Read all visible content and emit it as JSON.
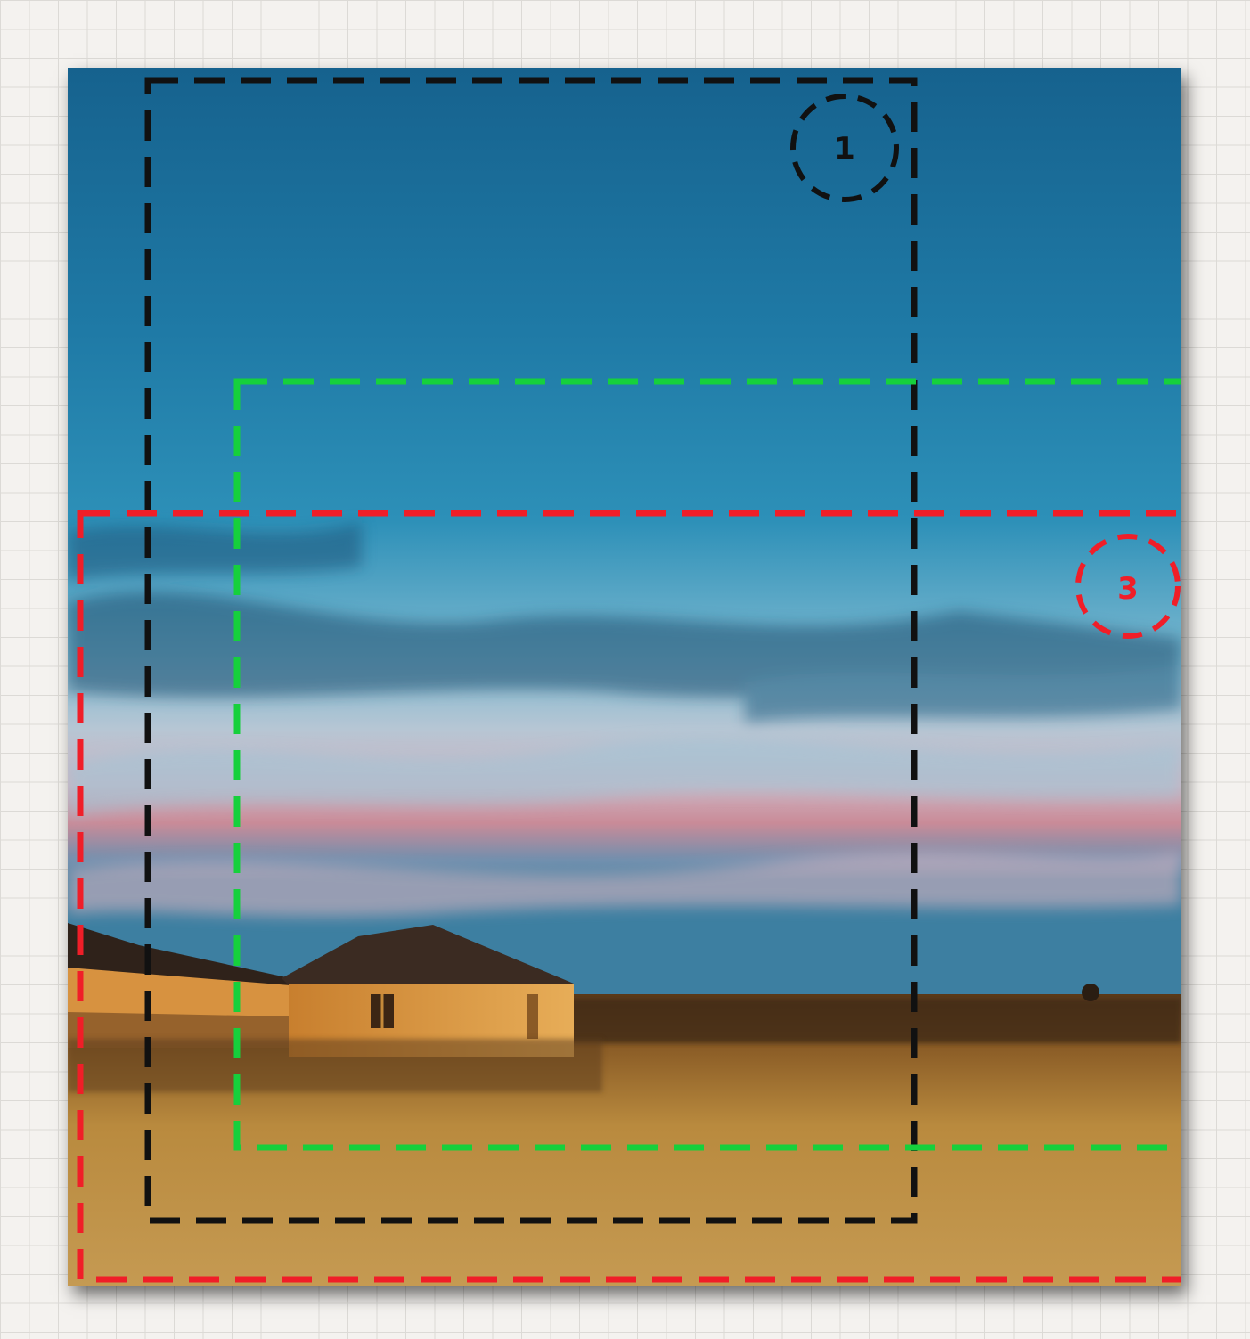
{
  "photo": {
    "subject": "sunset-landscape-with-farmhouse",
    "colors": {
      "sky_top": "#1d6f98",
      "sky_mid": "#2a8cb4",
      "sky_light": "#6fb3cf",
      "sky_haze": "#c9c4d0",
      "sky_pink": "#d78a95",
      "horizon": "#3c7fa0",
      "field": "#b98a3e",
      "house_wall": "#e0a24b",
      "roof": "#3b2b22"
    }
  },
  "overlays": [
    {
      "id": "region-1",
      "label": "1",
      "color": "#111111"
    },
    {
      "id": "region-2",
      "label": "",
      "color": "#16d03c"
    },
    {
      "id": "region-3",
      "label": "3",
      "color": "#f01e28"
    }
  ]
}
